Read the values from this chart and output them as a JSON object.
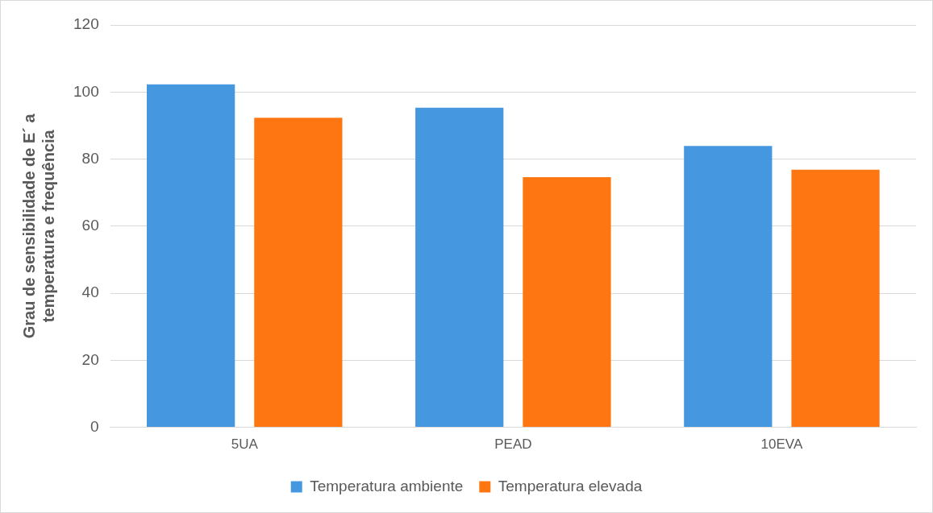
{
  "chart_data": {
    "type": "bar",
    "ylabel": "Grau de sensibilidade de E´ a temperatura e frequência",
    "categories": [
      "5UA",
      "PEAD",
      "10EVA"
    ],
    "series": [
      {
        "name": "Temperatura ambiente",
        "color": "#4597e0",
        "values": [
          102.3,
          95.3,
          83.9
        ]
      },
      {
        "name": "Temperatura elevada",
        "color": "#fd7612",
        "values": [
          92.3,
          74.6,
          76.8
        ]
      }
    ],
    "ylim": [
      0,
      120
    ],
    "yticks": [
      0,
      20,
      40,
      60,
      80,
      100,
      120
    ],
    "grid": "y",
    "legend": "bottom"
  }
}
